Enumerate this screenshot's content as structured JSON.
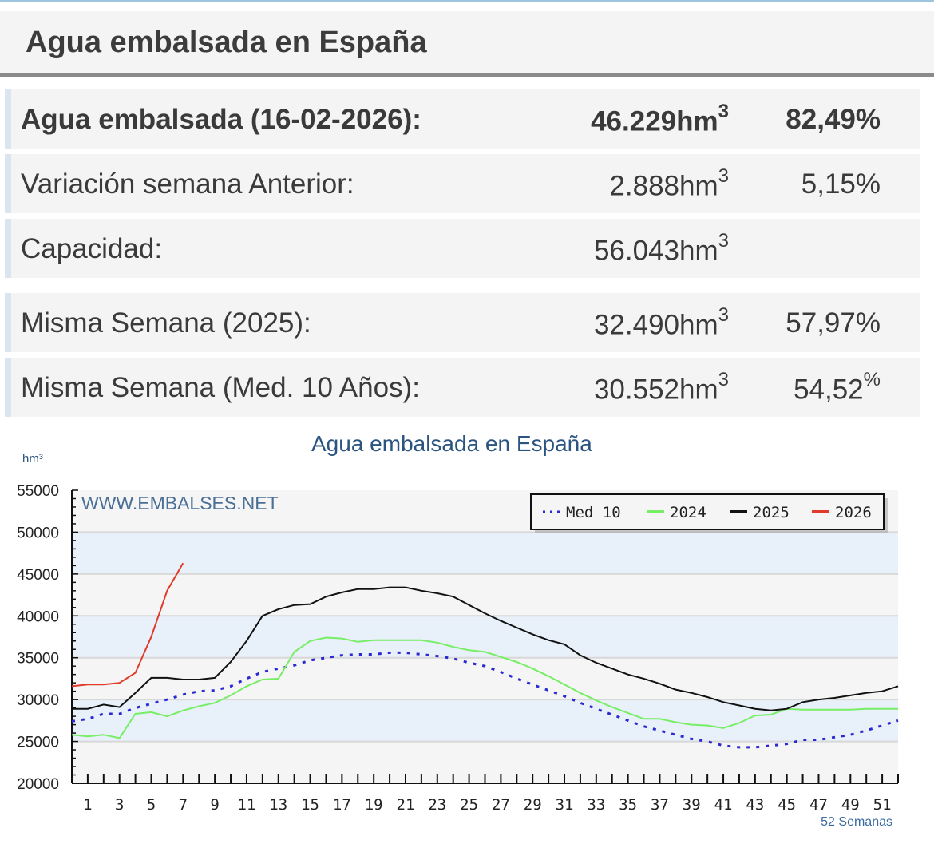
{
  "header": {
    "title": "Agua embalsada en España"
  },
  "rows": [
    {
      "label": "Agua embalsada (16-02-2026):",
      "value": "46.229",
      "unit": "hm",
      "exp": "3",
      "pct": "82,49%",
      "bold": true
    },
    {
      "label": "Variación semana Anterior:",
      "value": "2.888",
      "unit": "hm",
      "exp": "3",
      "pct": "5,15%"
    },
    {
      "label": "Capacidad:",
      "value": "56.043",
      "unit": "hm",
      "exp": "3",
      "pct": ""
    },
    {
      "label": "Misma Semana (2025):",
      "value": "32.490",
      "unit": "hm",
      "exp": "3",
      "pct": "57,97%"
    },
    {
      "label": "Misma Semana (Med. 10 Años):",
      "value": "30.552",
      "unit": "hm",
      "exp": "3",
      "pct": "54,52",
      "pct_sup": "%"
    }
  ],
  "chart_data": {
    "type": "line",
    "title": "Agua embalsada en España",
    "ylabel": "hm³",
    "xlabel": "52 Semanas",
    "watermark": "WWW.EMBALSES.NET",
    "ylim": [
      20000,
      55000
    ],
    "yticks": [
      55000,
      50000,
      45000,
      40000,
      35000,
      30000,
      25000,
      20000
    ],
    "xticks": [
      1,
      3,
      5,
      7,
      9,
      11,
      13,
      15,
      17,
      19,
      21,
      23,
      25,
      27,
      29,
      31,
      33,
      35,
      37,
      39,
      41,
      43,
      45,
      47,
      49,
      51
    ],
    "xlim": [
      0,
      52
    ],
    "legend_position": "top-right",
    "series": [
      {
        "name": "Med 10",
        "color": "#2a2ad0",
        "style": "dotted",
        "values": [
          27400,
          27700,
          28300,
          28300,
          29000,
          29500,
          30000,
          30600,
          31000,
          31100,
          31600,
          32500,
          33300,
          33700,
          34100,
          34700,
          35000,
          35300,
          35400,
          35400,
          35600,
          35600,
          35400,
          35200,
          34900,
          34400,
          34000,
          33300,
          32500,
          31800,
          31100,
          30400,
          29600,
          28900,
          28200,
          27500,
          26800,
          26300,
          25800,
          25300,
          25000,
          24500,
          24300,
          24300,
          24500,
          24700,
          25200,
          25200,
          25500,
          25800,
          26300,
          26900,
          27500
        ]
      },
      {
        "name": "2024",
        "color": "#77ee66",
        "style": "solid",
        "values": [
          25800,
          25600,
          25800,
          25400,
          28300,
          28500,
          28000,
          28700,
          29200,
          29600,
          30500,
          31600,
          32400,
          32500,
          35700,
          37000,
          37400,
          37300,
          36900,
          37100,
          37100,
          37100,
          37100,
          36800,
          36300,
          35900,
          35700,
          35100,
          34500,
          33700,
          32800,
          31800,
          30800,
          29900,
          29100,
          28400,
          27700,
          27700,
          27300,
          27000,
          26900,
          26600,
          27200,
          28100,
          28200,
          28900,
          28800,
          28800,
          28800,
          28800,
          28900,
          28900,
          28900
        ]
      },
      {
        "name": "2025",
        "color": "#111111",
        "style": "solid",
        "values": [
          28900,
          28900,
          29400,
          29100,
          30800,
          32600,
          32600,
          32400,
          32400,
          32600,
          34500,
          37000,
          40000,
          40800,
          41300,
          41400,
          42300,
          42800,
          43200,
          43200,
          43400,
          43400,
          43000,
          42700,
          42300,
          41300,
          40300,
          39400,
          38600,
          37800,
          37100,
          36600,
          35300,
          34400,
          33700,
          33000,
          32500,
          31900,
          31200,
          30800,
          30300,
          29700,
          29300,
          28900,
          28700,
          28900,
          29700,
          30000,
          30200,
          30500,
          30800,
          31000,
          31600
        ]
      },
      {
        "name": "2026",
        "color": "#e03a2a",
        "style": "solid",
        "values": [
          31600,
          31800,
          31800,
          32000,
          33200,
          37500,
          43000,
          46300
        ]
      }
    ]
  }
}
